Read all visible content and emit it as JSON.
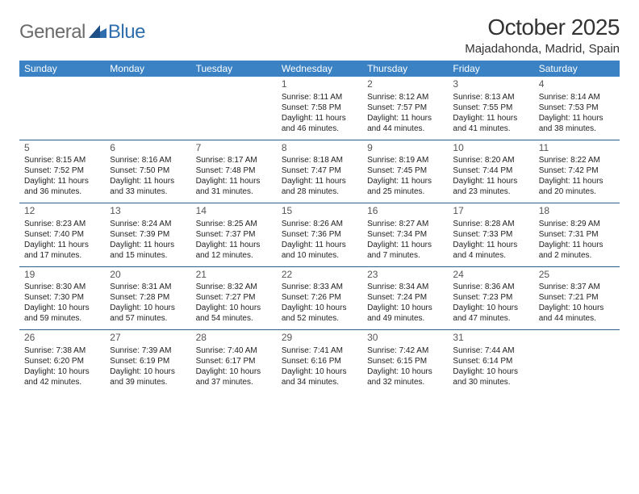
{
  "brand": {
    "text1": "General",
    "text2": "Blue"
  },
  "title": "October 2025",
  "location": "Majadahonda, Madrid, Spain",
  "colors": {
    "header_bg": "#3b82c4",
    "header_text": "#ffffff",
    "rule": "#2f5c8a",
    "text": "#222222",
    "daynum": "#555555",
    "brand_gray": "#6b6b6b",
    "brand_blue": "#2f6fae"
  },
  "weekdays": [
    "Sunday",
    "Monday",
    "Tuesday",
    "Wednesday",
    "Thursday",
    "Friday",
    "Saturday"
  ],
  "weeks": [
    [
      null,
      null,
      null,
      {
        "n": "1",
        "sr": "8:11 AM",
        "ss": "7:58 PM",
        "dl": "11 hours and 46 minutes."
      },
      {
        "n": "2",
        "sr": "8:12 AM",
        "ss": "7:57 PM",
        "dl": "11 hours and 44 minutes."
      },
      {
        "n": "3",
        "sr": "8:13 AM",
        "ss": "7:55 PM",
        "dl": "11 hours and 41 minutes."
      },
      {
        "n": "4",
        "sr": "8:14 AM",
        "ss": "7:53 PM",
        "dl": "11 hours and 38 minutes."
      }
    ],
    [
      {
        "n": "5",
        "sr": "8:15 AM",
        "ss": "7:52 PM",
        "dl": "11 hours and 36 minutes."
      },
      {
        "n": "6",
        "sr": "8:16 AM",
        "ss": "7:50 PM",
        "dl": "11 hours and 33 minutes."
      },
      {
        "n": "7",
        "sr": "8:17 AM",
        "ss": "7:48 PM",
        "dl": "11 hours and 31 minutes."
      },
      {
        "n": "8",
        "sr": "8:18 AM",
        "ss": "7:47 PM",
        "dl": "11 hours and 28 minutes."
      },
      {
        "n": "9",
        "sr": "8:19 AM",
        "ss": "7:45 PM",
        "dl": "11 hours and 25 minutes."
      },
      {
        "n": "10",
        "sr": "8:20 AM",
        "ss": "7:44 PM",
        "dl": "11 hours and 23 minutes."
      },
      {
        "n": "11",
        "sr": "8:22 AM",
        "ss": "7:42 PM",
        "dl": "11 hours and 20 minutes."
      }
    ],
    [
      {
        "n": "12",
        "sr": "8:23 AM",
        "ss": "7:40 PM",
        "dl": "11 hours and 17 minutes."
      },
      {
        "n": "13",
        "sr": "8:24 AM",
        "ss": "7:39 PM",
        "dl": "11 hours and 15 minutes."
      },
      {
        "n": "14",
        "sr": "8:25 AM",
        "ss": "7:37 PM",
        "dl": "11 hours and 12 minutes."
      },
      {
        "n": "15",
        "sr": "8:26 AM",
        "ss": "7:36 PM",
        "dl": "11 hours and 10 minutes."
      },
      {
        "n": "16",
        "sr": "8:27 AM",
        "ss": "7:34 PM",
        "dl": "11 hours and 7 minutes."
      },
      {
        "n": "17",
        "sr": "8:28 AM",
        "ss": "7:33 PM",
        "dl": "11 hours and 4 minutes."
      },
      {
        "n": "18",
        "sr": "8:29 AM",
        "ss": "7:31 PM",
        "dl": "11 hours and 2 minutes."
      }
    ],
    [
      {
        "n": "19",
        "sr": "8:30 AM",
        "ss": "7:30 PM",
        "dl": "10 hours and 59 minutes."
      },
      {
        "n": "20",
        "sr": "8:31 AM",
        "ss": "7:28 PM",
        "dl": "10 hours and 57 minutes."
      },
      {
        "n": "21",
        "sr": "8:32 AM",
        "ss": "7:27 PM",
        "dl": "10 hours and 54 minutes."
      },
      {
        "n": "22",
        "sr": "8:33 AM",
        "ss": "7:26 PM",
        "dl": "10 hours and 52 minutes."
      },
      {
        "n": "23",
        "sr": "8:34 AM",
        "ss": "7:24 PM",
        "dl": "10 hours and 49 minutes."
      },
      {
        "n": "24",
        "sr": "8:36 AM",
        "ss": "7:23 PM",
        "dl": "10 hours and 47 minutes."
      },
      {
        "n": "25",
        "sr": "8:37 AM",
        "ss": "7:21 PM",
        "dl": "10 hours and 44 minutes."
      }
    ],
    [
      {
        "n": "26",
        "sr": "7:38 AM",
        "ss": "6:20 PM",
        "dl": "10 hours and 42 minutes."
      },
      {
        "n": "27",
        "sr": "7:39 AM",
        "ss": "6:19 PM",
        "dl": "10 hours and 39 minutes."
      },
      {
        "n": "28",
        "sr": "7:40 AM",
        "ss": "6:17 PM",
        "dl": "10 hours and 37 minutes."
      },
      {
        "n": "29",
        "sr": "7:41 AM",
        "ss": "6:16 PM",
        "dl": "10 hours and 34 minutes."
      },
      {
        "n": "30",
        "sr": "7:42 AM",
        "ss": "6:15 PM",
        "dl": "10 hours and 32 minutes."
      },
      {
        "n": "31",
        "sr": "7:44 AM",
        "ss": "6:14 PM",
        "dl": "10 hours and 30 minutes."
      },
      null
    ]
  ],
  "labels": {
    "sunrise_prefix": "Sunrise: ",
    "sunset_prefix": "Sunset: ",
    "daylight_prefix": "Daylight: "
  }
}
